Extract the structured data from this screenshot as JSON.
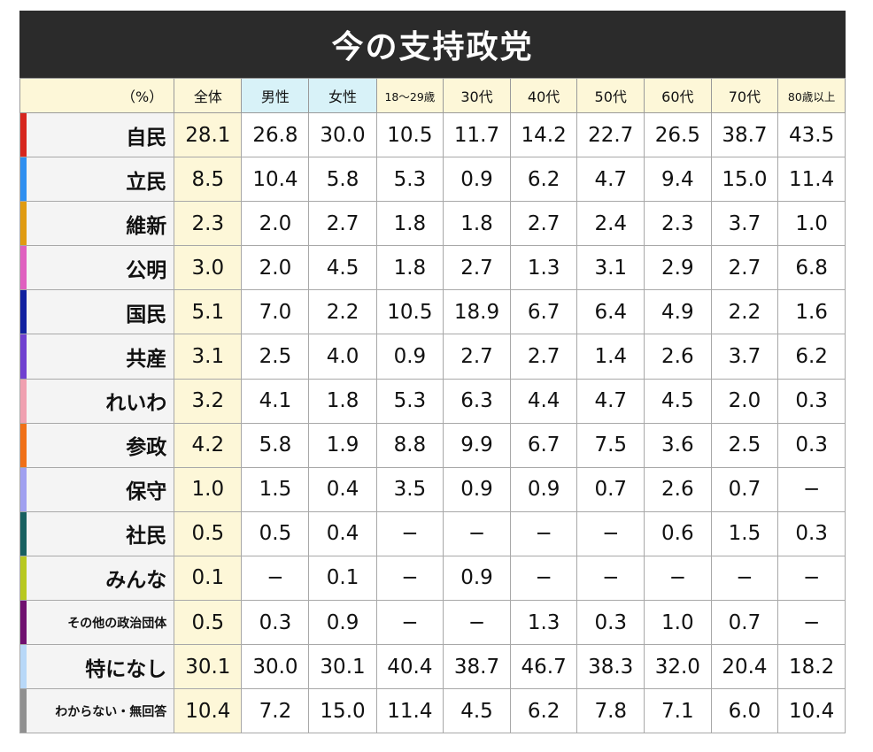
{
  "title": "今の支持政党",
  "chart_data": {
    "type": "table",
    "title": "今の支持政党",
    "unit_label": "（%）",
    "columns": [
      "全体",
      "男性",
      "女性",
      "18〜29歳",
      "30代",
      "40代",
      "50代",
      "60代",
      "70代",
      "80歳以上"
    ],
    "rows": [
      {
        "party": "自民",
        "color": "#d7261e",
        "values": [
          "28.1",
          "26.8",
          "30.0",
          "10.5",
          "11.7",
          "14.2",
          "22.7",
          "26.5",
          "38.7",
          "43.5"
        ]
      },
      {
        "party": "立民",
        "color": "#2f8ff0",
        "values": [
          "8.5",
          "10.4",
          "5.8",
          "5.3",
          "0.9",
          "6.2",
          "4.7",
          "9.4",
          "15.0",
          "11.4"
        ]
      },
      {
        "party": "維新",
        "color": "#e09b12",
        "values": [
          "2.3",
          "2.0",
          "2.7",
          "1.8",
          "1.8",
          "2.7",
          "2.4",
          "2.3",
          "3.7",
          "1.0"
        ]
      },
      {
        "party": "公明",
        "color": "#e060c0",
        "values": [
          "3.0",
          "2.0",
          "4.5",
          "1.8",
          "2.7",
          "1.3",
          "3.1",
          "2.9",
          "2.7",
          "6.8"
        ]
      },
      {
        "party": "国民",
        "color": "#1020a0",
        "values": [
          "5.1",
          "7.0",
          "2.2",
          "10.5",
          "18.9",
          "6.7",
          "6.4",
          "4.9",
          "2.2",
          "1.6"
        ]
      },
      {
        "party": "共産",
        "color": "#7040d0",
        "values": [
          "3.1",
          "2.5",
          "4.0",
          "0.9",
          "2.7",
          "2.7",
          "1.4",
          "2.6",
          "3.7",
          "6.2"
        ]
      },
      {
        "party": "れいわ",
        "color": "#f0a0b0",
        "values": [
          "3.2",
          "4.1",
          "1.8",
          "5.3",
          "6.3",
          "4.4",
          "4.7",
          "4.5",
          "2.0",
          "0.3"
        ]
      },
      {
        "party": "参政",
        "color": "#f07018",
        "values": [
          "4.2",
          "5.8",
          "1.9",
          "8.8",
          "9.9",
          "6.7",
          "7.5",
          "3.6",
          "2.5",
          "0.3"
        ]
      },
      {
        "party": "保守",
        "color": "#a0a0f0",
        "values": [
          "1.0",
          "1.5",
          "0.4",
          "3.5",
          "0.9",
          "0.9",
          "0.7",
          "2.6",
          "0.7",
          "−"
        ]
      },
      {
        "party": "社民",
        "color": "#186060",
        "values": [
          "0.5",
          "0.5",
          "0.4",
          "−",
          "−",
          "−",
          "−",
          "0.6",
          "1.5",
          "0.3"
        ]
      },
      {
        "party": "みんな",
        "color": "#b8c820",
        "values": [
          "0.1",
          "−",
          "0.1",
          "−",
          "0.9",
          "−",
          "−",
          "−",
          "−",
          "−"
        ]
      },
      {
        "party": "その他の政治団体",
        "color": "#701070",
        "values": [
          "0.5",
          "0.3",
          "0.9",
          "−",
          "−",
          "1.3",
          "0.3",
          "1.0",
          "0.7",
          "−"
        ]
      },
      {
        "party": "特になし",
        "color": "#b8d8f8",
        "values": [
          "30.1",
          "30.0",
          "30.1",
          "40.4",
          "38.7",
          "46.7",
          "38.3",
          "32.0",
          "20.4",
          "18.2"
        ]
      },
      {
        "party": "わからない・無回答",
        "color": "#909090",
        "values": [
          "10.4",
          "7.2",
          "15.0",
          "11.4",
          "4.5",
          "6.2",
          "7.8",
          "7.1",
          "6.0",
          "10.4"
        ]
      }
    ]
  }
}
